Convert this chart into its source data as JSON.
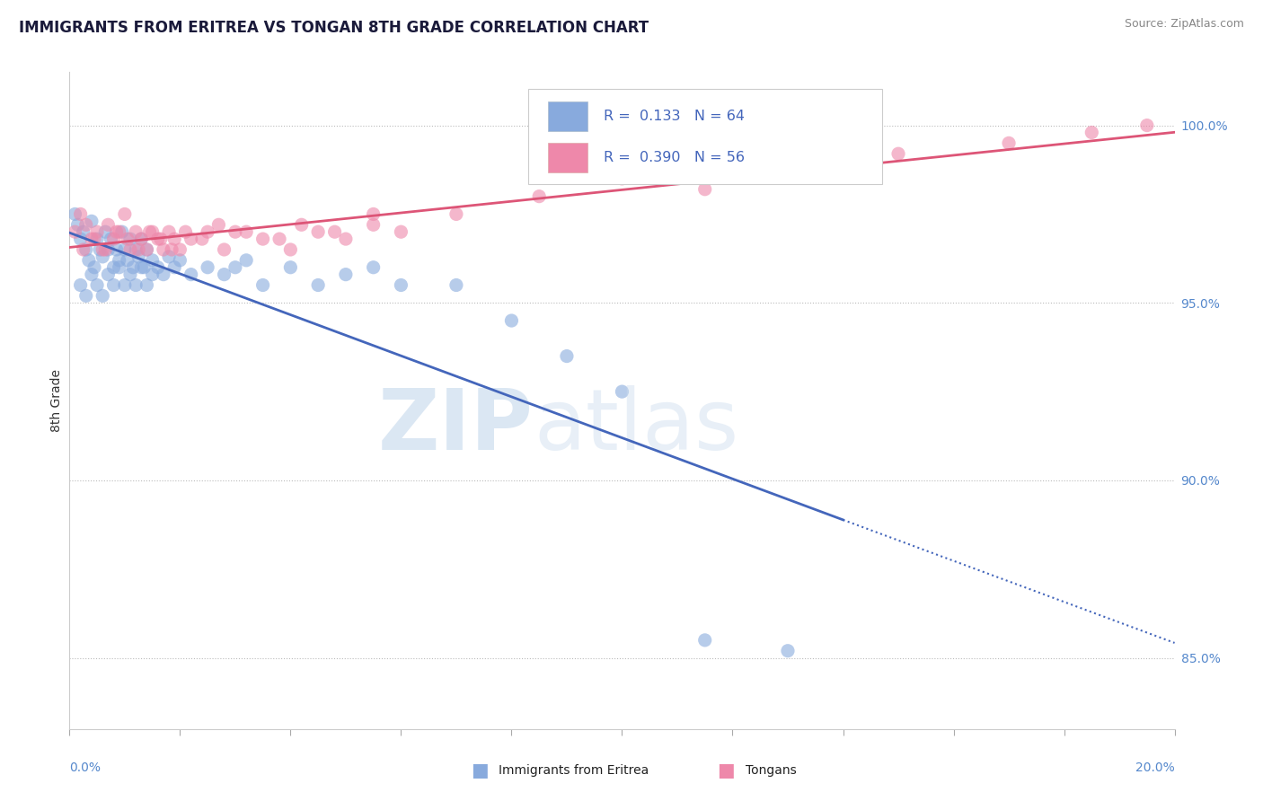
{
  "title": "IMMIGRANTS FROM ERITREA VS TONGAN 8TH GRADE CORRELATION CHART",
  "source": "Source: ZipAtlas.com",
  "ylabel": "8th Grade",
  "xlim": [
    0.0,
    20.0
  ],
  "ylim": [
    83.0,
    101.5
  ],
  "y_ticks": [
    85.0,
    90.0,
    95.0,
    100.0
  ],
  "y_tick_labels": [
    "85.0%",
    "90.0%",
    "95.0%",
    "100.0%"
  ],
  "color_blue": "#88AADD",
  "color_pink": "#EE88AA",
  "color_blue_line": "#4466BB",
  "color_pink_line": "#DD5577",
  "r_blue": 0.133,
  "n_blue": 64,
  "r_pink": 0.39,
  "n_pink": 56,
  "legend_r1": "R =  0.133   N = 64",
  "legend_r2": "R =  0.390   N = 56",
  "legend_label1": "Immigrants from Eritrea",
  "legend_label2": "Tongans",
  "blue_x": [
    0.1,
    0.15,
    0.2,
    0.25,
    0.3,
    0.35,
    0.4,
    0.45,
    0.5,
    0.55,
    0.6,
    0.65,
    0.7,
    0.75,
    0.8,
    0.85,
    0.9,
    0.95,
    1.0,
    1.05,
    1.1,
    1.15,
    1.2,
    1.25,
    1.3,
    1.35,
    1.4,
    1.5,
    1.6,
    1.7,
    1.8,
    1.9,
    2.0,
    2.2,
    2.5,
    2.8,
    3.0,
    3.5,
    4.0,
    4.5,
    5.0,
    5.5,
    6.0,
    7.0,
    8.0,
    9.0,
    10.0,
    11.5,
    13.0,
    0.2,
    0.3,
    0.4,
    0.5,
    0.6,
    0.7,
    0.8,
    0.9,
    1.0,
    1.1,
    1.2,
    1.3,
    1.4,
    1.5,
    3.2
  ],
  "blue_y": [
    97.5,
    97.2,
    96.8,
    97.0,
    96.5,
    96.2,
    97.3,
    96.0,
    96.8,
    96.5,
    96.3,
    97.0,
    96.5,
    96.8,
    96.0,
    96.5,
    96.2,
    97.0,
    96.5,
    96.2,
    96.8,
    96.0,
    96.5,
    96.3,
    96.8,
    96.0,
    96.5,
    96.2,
    96.0,
    95.8,
    96.3,
    96.0,
    96.2,
    95.8,
    96.0,
    95.8,
    96.0,
    95.5,
    96.0,
    95.5,
    95.8,
    96.0,
    95.5,
    95.5,
    94.5,
    93.5,
    92.5,
    85.5,
    85.2,
    95.5,
    95.2,
    95.8,
    95.5,
    95.2,
    95.8,
    95.5,
    96.0,
    95.5,
    95.8,
    95.5,
    96.0,
    95.5,
    95.8,
    96.2
  ],
  "pink_x": [
    0.1,
    0.2,
    0.3,
    0.4,
    0.5,
    0.6,
    0.7,
    0.8,
    0.9,
    1.0,
    1.1,
    1.2,
    1.3,
    1.4,
    1.5,
    1.6,
    1.7,
    1.8,
    1.9,
    2.0,
    2.2,
    2.5,
    2.8,
    3.0,
    3.5,
    4.0,
    4.5,
    5.0,
    5.5,
    6.0,
    7.0,
    8.5,
    10.0,
    11.5,
    13.0,
    15.0,
    17.0,
    18.5,
    19.5,
    0.25,
    0.45,
    0.65,
    0.85,
    1.05,
    1.25,
    1.45,
    1.65,
    1.85,
    2.1,
    2.4,
    2.7,
    3.2,
    3.8,
    4.2,
    4.8,
    5.5
  ],
  "pink_y": [
    97.0,
    97.5,
    97.2,
    96.8,
    97.0,
    96.5,
    97.2,
    96.8,
    97.0,
    97.5,
    96.5,
    97.0,
    96.8,
    96.5,
    97.0,
    96.8,
    96.5,
    97.0,
    96.8,
    96.5,
    96.8,
    97.0,
    96.5,
    97.0,
    96.8,
    96.5,
    97.0,
    96.8,
    97.2,
    97.0,
    97.5,
    98.0,
    98.5,
    98.2,
    98.8,
    99.2,
    99.5,
    99.8,
    100.0,
    96.5,
    96.8,
    96.5,
    97.0,
    96.8,
    96.5,
    97.0,
    96.8,
    96.5,
    97.0,
    96.8,
    97.2,
    97.0,
    96.8,
    97.2,
    97.0,
    97.5
  ]
}
